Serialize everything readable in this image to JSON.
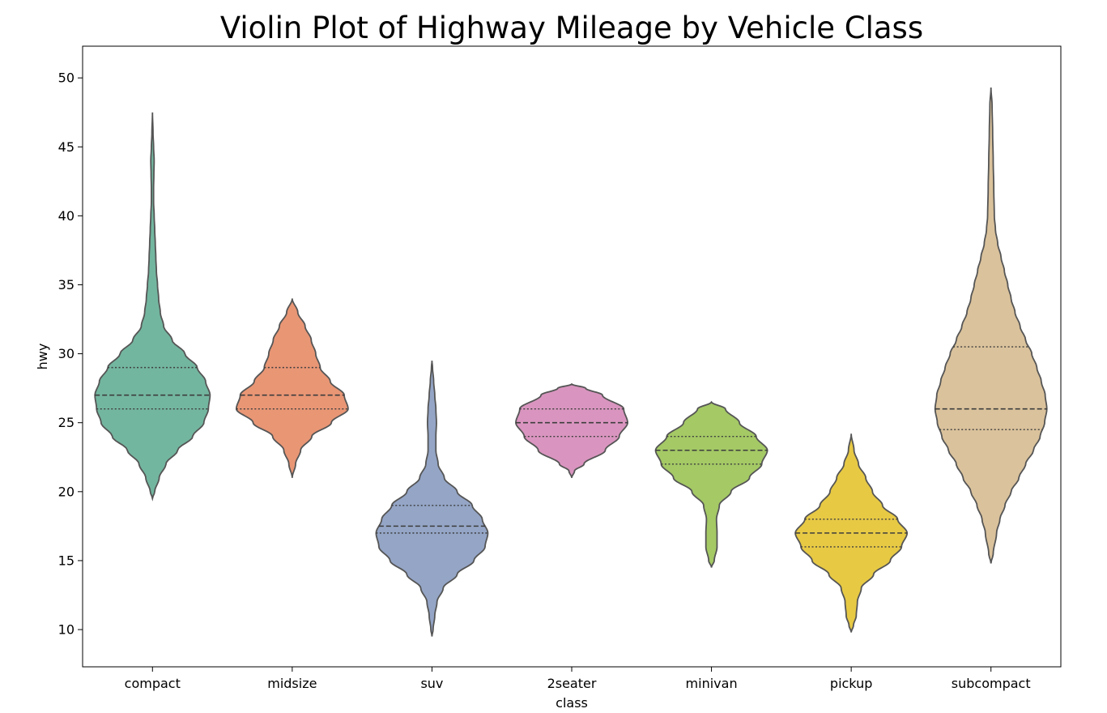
{
  "chart_data": {
    "type": "violin",
    "title": "Violin Plot of Highway Mileage by Vehicle Class",
    "xlabel": "class",
    "ylabel": "hwy",
    "ylim": [
      7.3,
      52.3
    ],
    "yticks": [
      10,
      15,
      20,
      25,
      30,
      35,
      40,
      45,
      50
    ],
    "grid": false,
    "legend": "none",
    "inner": "quartile",
    "categories": [
      "compact",
      "midsize",
      "suv",
      "2seater",
      "minivan",
      "pickup",
      "subcompact"
    ],
    "series": [
      {
        "category": "compact",
        "color": "#73b6a0",
        "min": 19.5,
        "max": 47.5,
        "q1": 26,
        "median": 27,
        "q3": 29,
        "profile": [
          [
            19.5,
            0
          ],
          [
            20,
            0.04
          ],
          [
            21,
            0.12
          ],
          [
            22,
            0.24
          ],
          [
            23,
            0.45
          ],
          [
            24,
            0.72
          ],
          [
            25,
            0.92
          ],
          [
            26,
            1.0
          ],
          [
            27,
            1.03
          ],
          [
            28,
            0.95
          ],
          [
            29,
            0.8
          ],
          [
            30,
            0.58
          ],
          [
            31,
            0.35
          ],
          [
            32,
            0.2
          ],
          [
            33,
            0.14
          ],
          [
            34,
            0.11
          ],
          [
            35,
            0.09
          ],
          [
            36,
            0.07
          ],
          [
            37,
            0.06
          ],
          [
            38,
            0.05
          ],
          [
            39,
            0.04
          ],
          [
            40,
            0.03
          ],
          [
            41,
            0.02
          ],
          [
            42,
            0.02
          ],
          [
            43,
            0.025
          ],
          [
            44,
            0.03
          ],
          [
            45,
            0.02
          ],
          [
            46,
            0.01
          ],
          [
            47.5,
            0
          ]
        ]
      },
      {
        "category": "midsize",
        "color": "#e99675",
        "min": 21,
        "max": 34,
        "q1": 26,
        "median": 27,
        "q3": 29,
        "profile": [
          [
            21,
            0
          ],
          [
            22,
            0.06
          ],
          [
            23,
            0.15
          ],
          [
            24,
            0.35
          ],
          [
            25,
            0.7
          ],
          [
            26,
            1.0
          ],
          [
            27,
            0.93
          ],
          [
            28,
            0.68
          ],
          [
            29,
            0.5
          ],
          [
            30,
            0.42
          ],
          [
            31,
            0.34
          ],
          [
            32,
            0.23
          ],
          [
            33,
            0.1
          ],
          [
            34,
            0
          ]
        ]
      },
      {
        "category": "suv",
        "color": "#94a5c6",
        "min": 9.5,
        "max": 29.5,
        "q1": 17,
        "median": 17.5,
        "q3": 19,
        "profile": [
          [
            9.5,
            0
          ],
          [
            10,
            0.02
          ],
          [
            11,
            0.05
          ],
          [
            12,
            0.09
          ],
          [
            13,
            0.2
          ],
          [
            14,
            0.45
          ],
          [
            15,
            0.75
          ],
          [
            16,
            0.95
          ],
          [
            17,
            1.0
          ],
          [
            18,
            0.9
          ],
          [
            19,
            0.72
          ],
          [
            20,
            0.45
          ],
          [
            21,
            0.22
          ],
          [
            22,
            0.11
          ],
          [
            23,
            0.07
          ],
          [
            24,
            0.07
          ],
          [
            25,
            0.08
          ],
          [
            26,
            0.07
          ],
          [
            27,
            0.05
          ],
          [
            28,
            0.03
          ],
          [
            29,
            0.01
          ],
          [
            29.5,
            0
          ]
        ]
      },
      {
        "category": "2seater",
        "color": "#d995bf",
        "min": 21,
        "max": 27.8,
        "q1": 24,
        "median": 25,
        "q3": 26,
        "profile": [
          [
            21,
            0
          ],
          [
            21.5,
            0.05
          ],
          [
            22,
            0.22
          ],
          [
            23,
            0.6
          ],
          [
            24,
            0.85
          ],
          [
            25,
            1.0
          ],
          [
            26,
            0.93
          ],
          [
            27,
            0.55
          ],
          [
            27.5,
            0.25
          ],
          [
            27.8,
            0
          ]
        ]
      },
      {
        "category": "minivan",
        "color": "#a4c965",
        "min": 14.5,
        "max": 26.5,
        "q1": 22,
        "median": 23,
        "q3": 24,
        "profile": [
          [
            14.5,
            0
          ],
          [
            15,
            0.05
          ],
          [
            16,
            0.1
          ],
          [
            17,
            0.1
          ],
          [
            18,
            0.09
          ],
          [
            19,
            0.14
          ],
          [
            20,
            0.35
          ],
          [
            21,
            0.68
          ],
          [
            22,
            0.9
          ],
          [
            23,
            1.0
          ],
          [
            24,
            0.8
          ],
          [
            25,
            0.5
          ],
          [
            26,
            0.25
          ],
          [
            26.5,
            0
          ]
        ]
      },
      {
        "category": "pickup",
        "color": "#e7c944",
        "min": 9.8,
        "max": 24.2,
        "q1": 16,
        "median": 17,
        "q3": 18,
        "profile": [
          [
            9.8,
            0
          ],
          [
            10.3,
            0.04
          ],
          [
            11,
            0.09
          ],
          [
            12,
            0.11
          ],
          [
            13,
            0.18
          ],
          [
            14,
            0.4
          ],
          [
            15,
            0.7
          ],
          [
            16,
            0.9
          ],
          [
            17,
            1.0
          ],
          [
            18,
            0.83
          ],
          [
            19,
            0.56
          ],
          [
            20,
            0.38
          ],
          [
            21,
            0.26
          ],
          [
            22,
            0.13
          ],
          [
            23,
            0.05
          ],
          [
            24.2,
            0
          ]
        ]
      },
      {
        "category": "subcompact",
        "color": "#dac29c",
        "min": 14.8,
        "max": 49.3,
        "q1": 24.5,
        "median": 26,
        "q3": 30.5,
        "profile": [
          [
            14.8,
            0
          ],
          [
            15.5,
            0.04
          ],
          [
            17,
            0.1
          ],
          [
            18,
            0.16
          ],
          [
            19,
            0.25
          ],
          [
            20,
            0.36
          ],
          [
            21,
            0.5
          ],
          [
            22,
            0.62
          ],
          [
            23,
            0.76
          ],
          [
            24,
            0.88
          ],
          [
            25,
            0.96
          ],
          [
            26,
            1.0
          ],
          [
            27,
            0.97
          ],
          [
            28,
            0.9
          ],
          [
            29,
            0.82
          ],
          [
            30,
            0.73
          ],
          [
            31,
            0.62
          ],
          [
            32,
            0.52
          ],
          [
            33,
            0.43
          ],
          [
            34,
            0.36
          ],
          [
            35,
            0.3
          ],
          [
            36,
            0.24
          ],
          [
            37,
            0.18
          ],
          [
            38,
            0.12
          ],
          [
            39,
            0.08
          ],
          [
            40,
            0.06
          ],
          [
            42,
            0.05
          ],
          [
            44,
            0.04
          ],
          [
            46,
            0.03
          ],
          [
            48,
            0.02
          ],
          [
            49.3,
            0
          ]
        ]
      }
    ]
  }
}
